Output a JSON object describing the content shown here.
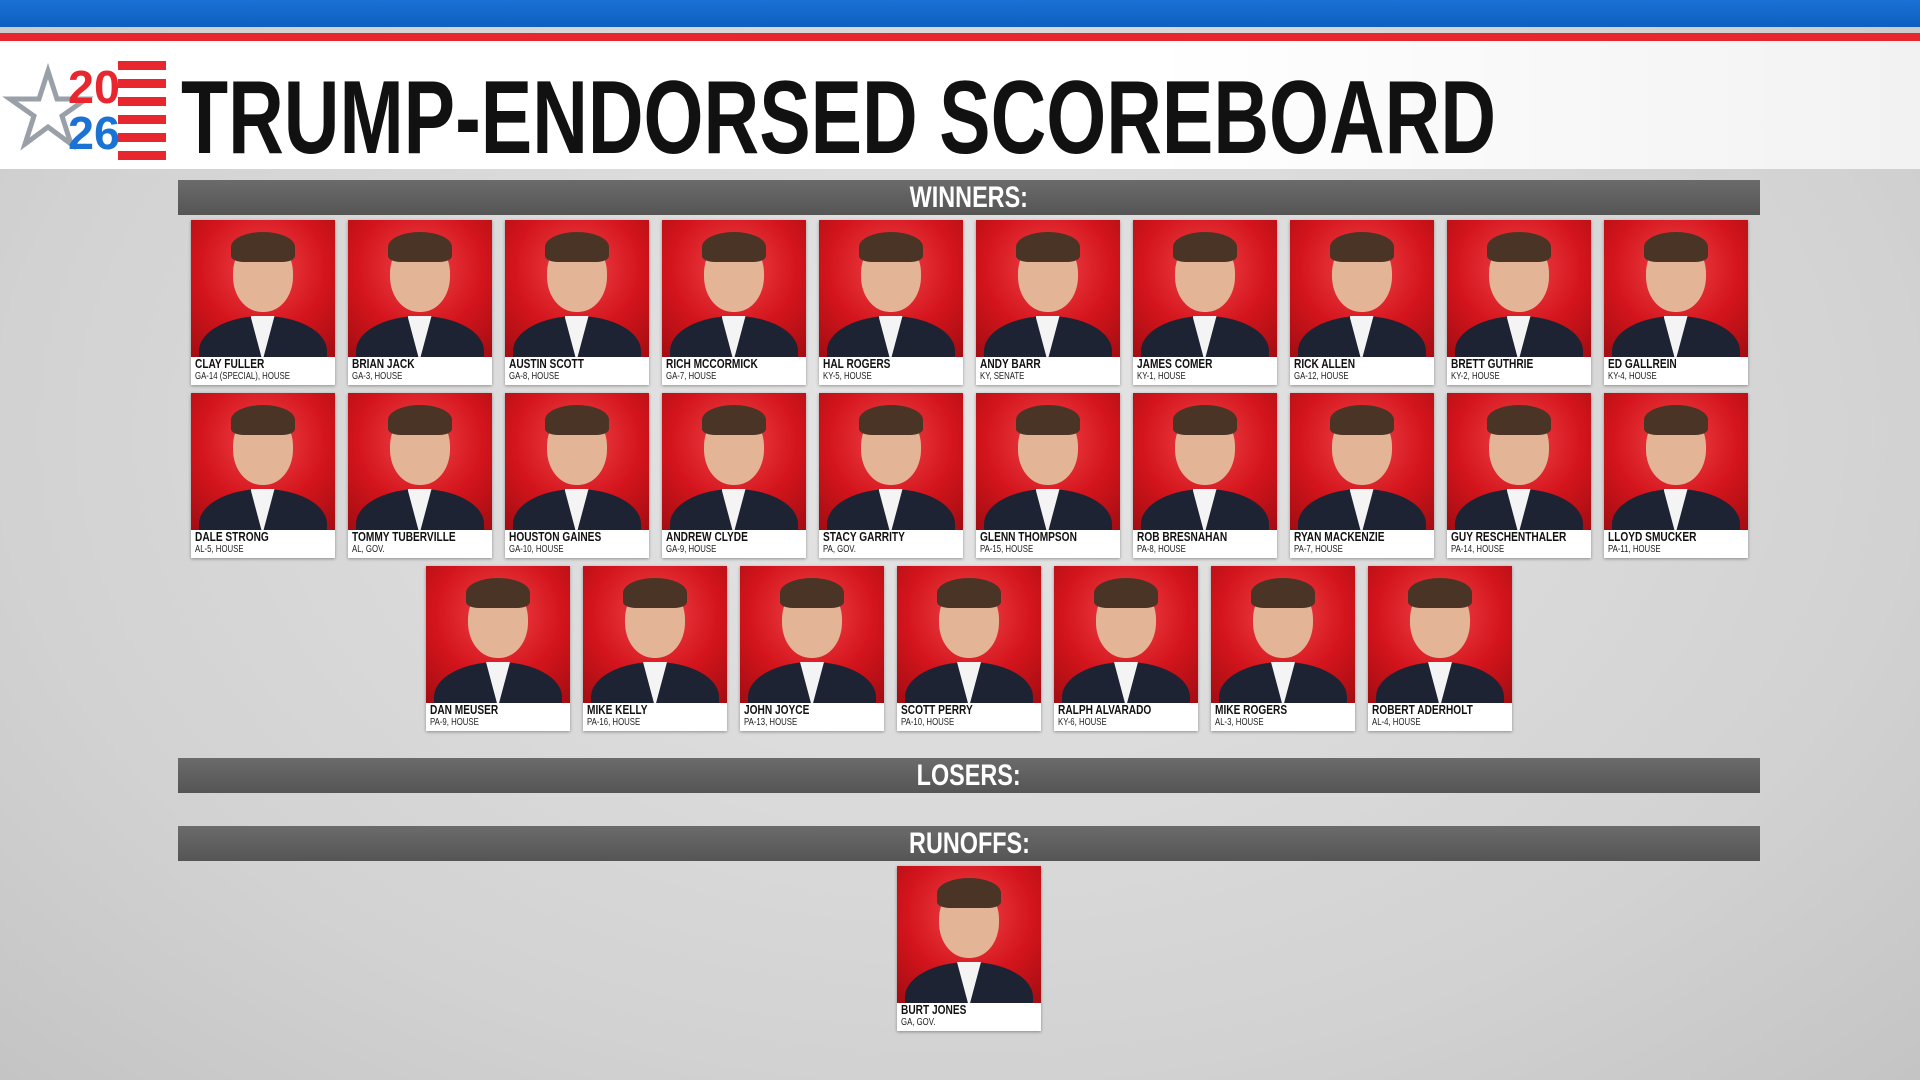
{
  "header": {
    "logo_top": "20",
    "logo_bottom": "26",
    "title": "TRUMP-ENDORSED SCOREBOARD"
  },
  "sections": [
    {
      "label": "WINNERS:",
      "candidates": [
        {
          "name": "CLAY FULLER",
          "race": "GA-14 (SPECIAL), HOUSE"
        },
        {
          "name": "BRIAN JACK",
          "race": "GA-3, HOUSE"
        },
        {
          "name": "AUSTIN SCOTT",
          "race": "GA-8, HOUSE"
        },
        {
          "name": "RICH MCCORMICK",
          "race": "GA-7, HOUSE"
        },
        {
          "name": "HAL ROGERS",
          "race": "KY-5, HOUSE"
        },
        {
          "name": "ANDY BARR",
          "race": "KY, SENATE"
        },
        {
          "name": "JAMES COMER",
          "race": "KY-1, HOUSE"
        },
        {
          "name": "RICK ALLEN",
          "race": "GA-12, HOUSE"
        },
        {
          "name": "BRETT GUTHRIE",
          "race": "KY-2, HOUSE"
        },
        {
          "name": "ED GALLREIN",
          "race": "KY-4, HOUSE"
        },
        {
          "name": "DALE STRONG",
          "race": "AL-5, HOUSE"
        },
        {
          "name": "TOMMY TUBERVILLE",
          "race": "AL, GOV."
        },
        {
          "name": "HOUSTON GAINES",
          "race": "GA-10, HOUSE"
        },
        {
          "name": "ANDREW CLYDE",
          "race": "GA-9, HOUSE"
        },
        {
          "name": "STACY GARRITY",
          "race": "PA, GOV."
        },
        {
          "name": "GLENN THOMPSON",
          "race": "PA-15, HOUSE"
        },
        {
          "name": "ROB BRESNAHAN",
          "race": "PA-8, HOUSE"
        },
        {
          "name": "RYAN MACKENZIE",
          "race": "PA-7, HOUSE"
        },
        {
          "name": "GUY RESCHENTHALER",
          "race": "PA-14, HOUSE"
        },
        {
          "name": "LLOYD SMUCKER",
          "race": "PA-11, HOUSE"
        },
        {
          "name": "DAN MEUSER",
          "race": "PA-9, HOUSE"
        },
        {
          "name": "MIKE KELLY",
          "race": "PA-16, HOUSE"
        },
        {
          "name": "JOHN JOYCE",
          "race": "PA-13, HOUSE"
        },
        {
          "name": "SCOTT PERRY",
          "race": "PA-10, HOUSE"
        },
        {
          "name": "RALPH ALVARADO",
          "race": "KY-6, HOUSE"
        },
        {
          "name": "MIKE ROGERS",
          "race": "AL-3, HOUSE"
        },
        {
          "name": "ROBERT ADERHOLT",
          "race": "AL-4, HOUSE"
        }
      ]
    },
    {
      "label": "LOSERS:",
      "candidates": []
    },
    {
      "label": "RUNOFFS:",
      "candidates": [
        {
          "name": "BURT JONES",
          "race": "GA, GOV."
        }
      ]
    }
  ]
}
